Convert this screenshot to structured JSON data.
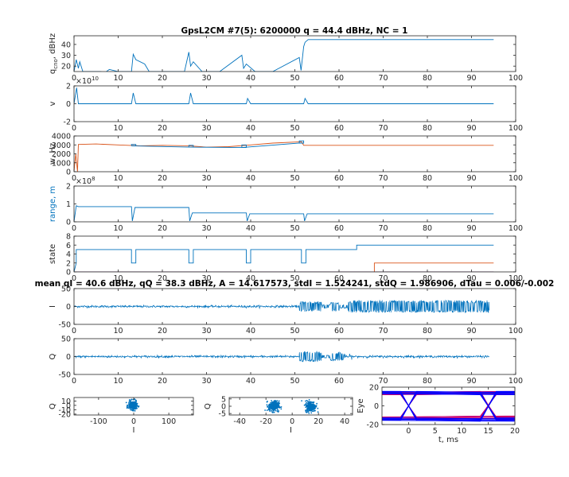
{
  "titles": {
    "main": "GpsL2CM #7(5): 6200000 q = 44.4 dBHz,  NC = 1",
    "iq": "mean qI = 40.6 dBHz, qQ = 38.3 dBHz, A = 14.617573, stdI = 1.524241, stdQ = 1.986906, dTau = 0.006/-0.002"
  },
  "colors": {
    "blue": "#0072BD",
    "orange": "#D95319",
    "purple": "#7E2F8E",
    "darkblue": "#0000FF",
    "magenta": "#C8006E"
  },
  "chart_data": [
    {
      "id": "q",
      "type": "line",
      "ylabel": "q_{cno}, dBHz",
      "xlim": [
        0,
        100
      ],
      "ylim": [
        15,
        48
      ],
      "xticks": [
        "0",
        "10",
        "20",
        "30",
        "40",
        "50",
        "60",
        "70",
        "80",
        "90",
        "100"
      ],
      "yticks": [
        {
          "v": 20,
          "t": "20"
        },
        {
          "v": 30,
          "t": "30"
        },
        {
          "v": 40,
          "t": "40"
        }
      ],
      "series": [
        {
          "color": "blue",
          "x": [
            0,
            0.5,
            1,
            1.3,
            2,
            3,
            5,
            6,
            7,
            8,
            10,
            13,
            13.4,
            14,
            16,
            17,
            20,
            25,
            26,
            26.4,
            27,
            29,
            30,
            33,
            38,
            38.4,
            39,
            41,
            42,
            45,
            51,
            51.4,
            52,
            52.3,
            53,
            95
          ],
          "y": [
            15,
            26,
            18,
            24,
            15,
            15,
            15,
            15,
            14,
            17,
            15,
            15,
            31,
            26,
            22,
            15,
            15,
            15,
            33,
            20,
            24,
            15,
            15,
            15,
            30,
            18,
            22,
            15,
            15,
            15,
            28,
            16,
            38,
            42,
            44.5,
            44.5
          ]
        }
      ]
    },
    {
      "id": "v",
      "type": "line",
      "ylabel": "v",
      "exponent": "10",
      "xlim": [
        0,
        100
      ],
      "ylim": [
        -2,
        2
      ],
      "xticks": [
        "0",
        "10",
        "20",
        "30",
        "40",
        "50",
        "60",
        "70",
        "80",
        "90",
        "100"
      ],
      "yticks": [
        {
          "v": -2,
          "t": "-2"
        },
        {
          "v": 0,
          "t": "0"
        },
        {
          "v": 2,
          "t": "2"
        }
      ],
      "series": [
        {
          "color": "blue",
          "x": [
            0,
            0.6,
            1,
            13,
            13.4,
            14,
            26,
            26.4,
            27,
            39,
            39.3,
            40,
            52,
            52.3,
            53,
            95
          ],
          "y": [
            0,
            1.8,
            0,
            0,
            1.2,
            0,
            0,
            1.2,
            0,
            0,
            0.6,
            0,
            0,
            0.6,
            0,
            0
          ]
        }
      ]
    },
    {
      "id": "w",
      "type": "line",
      "ylabel": "w, Hz",
      "xlim": [
        0,
        100
      ],
      "ylim": [
        0,
        4000
      ],
      "xticks": [
        "0",
        "10",
        "20",
        "30",
        "40",
        "50",
        "60",
        "70",
        "80",
        "90",
        "100"
      ],
      "yticks": [
        {
          "v": 0,
          "t": "0"
        },
        {
          "v": 1000,
          "t": "1000"
        },
        {
          "v": 2000,
          "t": "2000"
        },
        {
          "v": 3000,
          "t": "3000"
        },
        {
          "v": 4000,
          "t": "4000"
        }
      ],
      "series": [
        {
          "color": "orange",
          "x": [
            0,
            0.4,
            0.8,
            1,
            5,
            10,
            15,
            20,
            26,
            30,
            35,
            40,
            45,
            51.5,
            52,
            60,
            70,
            80,
            95
          ],
          "y": [
            0,
            2000,
            0,
            3050,
            3100,
            3000,
            2900,
            2950,
            2900,
            2750,
            2800,
            3000,
            3200,
            3350,
            2950,
            2950,
            2950,
            2950,
            2950
          ]
        },
        {
          "color": "blue",
          "x": [
            13,
            13,
            14,
            14,
            13,
            26,
            26,
            27,
            27,
            26,
            38,
            38,
            39,
            39,
            38,
            51,
            51,
            52,
            52,
            51
          ],
          "y": [
            2900,
            3050,
            3050,
            2900,
            2900,
            2750,
            2950,
            2950,
            2750,
            2750,
            2700,
            3000,
            3000,
            2700,
            2700,
            3200,
            3450,
            3450,
            3200,
            3200
          ]
        }
      ]
    },
    {
      "id": "range",
      "type": "line",
      "ylabel": "range, m",
      "ylabelColor": "blue",
      "exponent": "8",
      "xlim": [
        0,
        100
      ],
      "ylim": [
        0,
        2
      ],
      "xticks": [
        "0",
        "10",
        "20",
        "30",
        "40",
        "50",
        "60",
        "70",
        "80",
        "90",
        "100"
      ],
      "yticks": [
        {
          "v": 0,
          "t": "0"
        },
        {
          "v": 1,
          "t": "1"
        },
        {
          "v": 2,
          "t": "2"
        }
      ],
      "series": [
        {
          "color": "blue",
          "x": [
            0,
            0.5,
            1,
            13,
            13.2,
            13.8,
            26,
            26.2,
            26.8,
            39,
            39.2,
            39.8,
            52,
            52.2,
            52.8,
            95
          ],
          "y": [
            0,
            0.9,
            0.85,
            0.85,
            0.05,
            0.8,
            0.8,
            0.05,
            0.5,
            0.5,
            0.05,
            0.45,
            0.45,
            0.05,
            0.45,
            0.45
          ]
        }
      ]
    },
    {
      "id": "state",
      "type": "line",
      "ylabel": "state",
      "xlim": [
        0,
        100
      ],
      "ylim": [
        0,
        8
      ],
      "xticks": [
        "0",
        "10",
        "20",
        "30",
        "40",
        "50",
        "60",
        "70",
        "80",
        "90",
        "100"
      ],
      "yticks": [
        {
          "v": 0,
          "t": "0"
        },
        {
          "v": 2,
          "t": "2"
        },
        {
          "v": 4,
          "t": "4"
        },
        {
          "v": 6,
          "t": "6"
        },
        {
          "v": 8,
          "t": "8"
        }
      ],
      "series": [
        {
          "color": "blue",
          "x": [
            0,
            0.5,
            0.5,
            13,
            13,
            14,
            14,
            26,
            26,
            27,
            27,
            39,
            39,
            40,
            40,
            51.5,
            51.5,
            52.5,
            52.5,
            64,
            64,
            95
          ],
          "y": [
            0,
            2,
            5,
            5,
            2,
            2,
            5,
            5,
            2,
            2,
            5,
            5,
            2,
            2,
            5,
            5,
            2,
            2,
            5,
            5,
            6,
            6
          ]
        },
        {
          "color": "orange",
          "x": [
            0,
            68,
            68,
            95
          ],
          "y": [
            0,
            0,
            2,
            2
          ]
        },
        {
          "color": "purple",
          "x": [
            0,
            95
          ],
          "y": [
            0,
            0
          ]
        }
      ]
    },
    {
      "id": "I",
      "type": "line",
      "ylabel": "I",
      "xlim": [
        0,
        100
      ],
      "ylim": [
        -50,
        50
      ],
      "xticks": [
        "0",
        "10",
        "20",
        "30",
        "40",
        "50",
        "60",
        "70",
        "80",
        "90",
        "100"
      ],
      "yticks": [
        {
          "v": -50,
          "t": "-50"
        },
        {
          "v": 0,
          "t": "0"
        },
        {
          "v": 50,
          "t": "50"
        }
      ],
      "noise": {
        "color": "blue",
        "x": [
          0,
          94
        ],
        "base": 1.5,
        "segments": [
          {
            "x": [
              51,
              56
            ],
            "amp": 14
          },
          {
            "x": [
              56,
              58
            ],
            "amp": 5
          },
          {
            "x": [
              58,
              60
            ],
            "amp": 13
          },
          {
            "x": [
              60,
              62
            ],
            "amp": 5
          },
          {
            "x": [
              62,
              94
            ],
            "amp": 17
          }
        ]
      }
    },
    {
      "id": "Q",
      "type": "line",
      "ylabel": "Q",
      "xlim": [
        0,
        100
      ],
      "ylim": [
        -50,
        50
      ],
      "xticks": [
        "0",
        "10",
        "20",
        "30",
        "40",
        "50",
        "60",
        "70",
        "80",
        "90",
        "100"
      ],
      "yticks": [
        {
          "v": -50,
          "t": "-50"
        },
        {
          "v": 0,
          "t": "0"
        },
        {
          "v": 50,
          "t": "50"
        }
      ],
      "noise": {
        "color": "blue",
        "x": [
          0,
          94
        ],
        "base": 1.5,
        "segments": [
          {
            "x": [
              51,
              56
            ],
            "amp": 14
          },
          {
            "x": [
              56,
              58
            ],
            "amp": 4
          },
          {
            "x": [
              58,
              61
            ],
            "amp": 12
          },
          {
            "x": [
              61,
              63
            ],
            "amp": 3
          }
        ]
      }
    },
    {
      "id": "sc1",
      "type": "scatter",
      "xlabel": "I",
      "ylabel": "Q",
      "xlim": [
        -170,
        170
      ],
      "ylim": [
        -22,
        18
      ],
      "xticks": [
        {
          "v": -100,
          "t": "-100"
        },
        {
          "v": 0,
          "t": "0"
        },
        {
          "v": 100,
          "t": "100"
        }
      ],
      "yticks": [
        {
          "v": 10,
          "t": "10"
        },
        {
          "v": 0,
          "t": "0"
        },
        {
          "v": -10,
          "t": "-10"
        },
        {
          "v": -20,
          "t": "-20"
        }
      ],
      "clusters": [
        {
          "cx": -3,
          "cy": 0,
          "sx": 6,
          "sy": 5
        }
      ]
    },
    {
      "id": "sc2",
      "type": "scatter",
      "xlabel": "I",
      "ylabel": "Q",
      "xlim": [
        -48,
        46
      ],
      "ylim": [
        -6,
        6
      ],
      "xticks": [
        {
          "v": -40,
          "t": "-40"
        },
        {
          "v": -20,
          "t": "-20"
        },
        {
          "v": 0,
          "t": "0"
        },
        {
          "v": 20,
          "t": "20"
        },
        {
          "v": 40,
          "t": "40"
        }
      ],
      "yticks": [
        {
          "v": 5,
          "t": "5"
        },
        {
          "v": 0,
          "t": "0"
        },
        {
          "v": -5,
          "t": "-5"
        }
      ],
      "clusters": [
        {
          "cx": -14,
          "cy": 0,
          "sx": 2,
          "sy": 1.8
        },
        {
          "cx": 14,
          "cy": 0,
          "sx": 2,
          "sy": 1.8
        }
      ]
    },
    {
      "id": "eye",
      "type": "line",
      "xlabel": "t, ms",
      "ylabel": "Eye",
      "xlim": [
        -5,
        20
      ],
      "ylim": [
        -20,
        20
      ],
      "xticks": [
        {
          "v": 0,
          "t": "0"
        },
        {
          "v": 5,
          "t": "5"
        },
        {
          "v": 10,
          "t": "10"
        },
        {
          "v": 15,
          "t": "15"
        },
        {
          "v": 20,
          "t": "20"
        }
      ],
      "yticks": [
        {
          "v": 20,
          "t": "20"
        },
        {
          "v": 0,
          "t": "0"
        },
        {
          "v": -20,
          "t": "-20"
        }
      ]
    }
  ]
}
